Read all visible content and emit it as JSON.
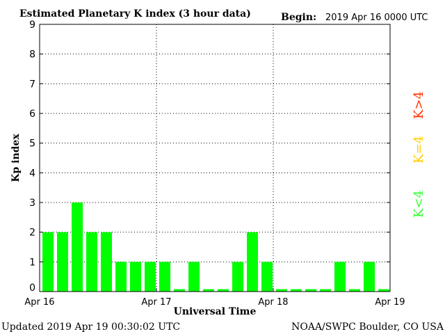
{
  "header": {
    "title": "Estimated Planetary K index (3 hour data)",
    "begin_label": "Begin:",
    "begin_value": "2019 Apr 16 0000 UTC"
  },
  "footer": {
    "updated": "Updated 2019 Apr 19 00:30:02 UTC",
    "credit": "NOAA/SWPC Boulder, CO USA"
  },
  "legend": {
    "high": "K>4",
    "mid": "K=4",
    "low": "K<4",
    "colors": {
      "high": "#ff3300",
      "mid": "#ffcc00",
      "low": "#33ff33"
    }
  },
  "chart_data": {
    "type": "bar",
    "title": "Estimated Planetary K index (3 hour data)",
    "xlabel": "Universal Time",
    "ylabel": "Kp index",
    "ylim": [
      0,
      9
    ],
    "yticks": [
      0,
      1,
      2,
      3,
      4,
      5,
      6,
      7,
      8,
      9
    ],
    "xtick_labels": [
      "Apr 16",
      "Apr 17",
      "Apr 18",
      "Apr 19"
    ],
    "grid": true,
    "bar_color": "#00ff00",
    "values": [
      2,
      2,
      3,
      2,
      2,
      1,
      1,
      1,
      1,
      0,
      1,
      0,
      0,
      1,
      2,
      1,
      0,
      0,
      0,
      0,
      1,
      0,
      1,
      0
    ]
  }
}
